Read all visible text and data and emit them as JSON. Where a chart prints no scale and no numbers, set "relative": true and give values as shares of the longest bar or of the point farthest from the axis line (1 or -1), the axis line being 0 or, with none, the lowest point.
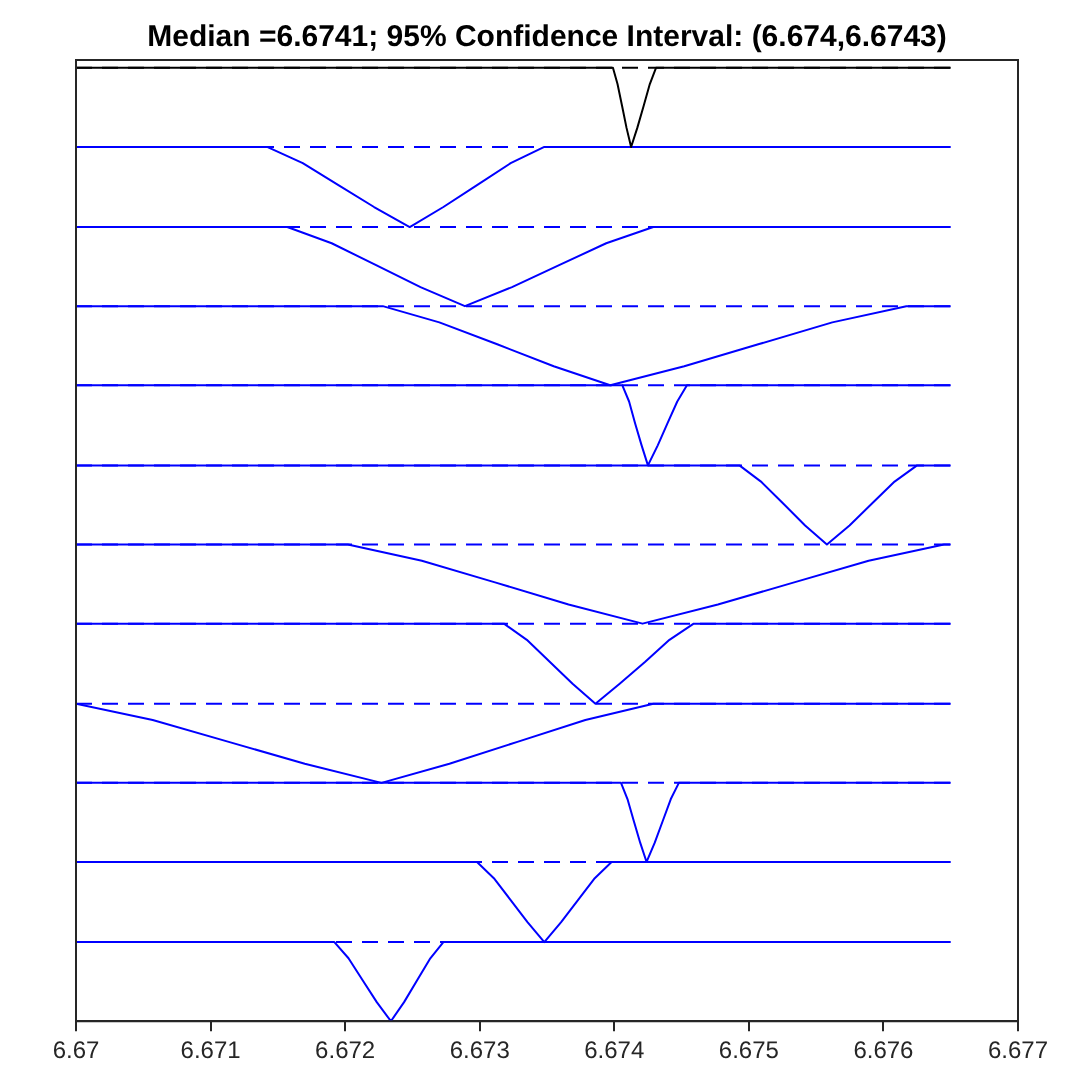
{
  "chart_data": {
    "type": "line",
    "title": "Median =6.6741; 95% Confidence Interval: (6.674,6.6743)",
    "relative": true,
    "xlim": [
      6.67,
      6.677
    ],
    "xticks": [
      6.67,
      6.671,
      6.672,
      6.673,
      6.674,
      6.675,
      6.676,
      6.677
    ],
    "grid": false,
    "legend": false,
    "marker": "none",
    "line_style": "solid",
    "series": [
      {
        "color": "#000000",
        "x": [
          6.67,
          6.67399,
          6.674024,
          6.674058,
          6.674091,
          6.674125,
          6.674171,
          6.674218,
          6.674264,
          6.67431,
          6.6765
        ],
        "values": [
          1,
          1,
          0.983,
          0.96,
          0.937,
          0.917,
          0.937,
          0.96,
          0.983,
          1,
          1
        ]
      },
      {
        "color": "#0000ff",
        "x": [
          6.67,
          6.67142,
          6.671685,
          6.67195,
          6.672215,
          6.67248,
          6.67273,
          6.67298,
          6.67323,
          6.67348,
          6.6765
        ],
        "values": [
          0.917,
          0.917,
          0.9,
          0.877,
          0.854,
          0.833,
          0.854,
          0.877,
          0.9,
          0.917,
          0.917
        ]
      },
      {
        "color": "#0000ff",
        "x": [
          6.67,
          6.67157,
          6.6719,
          6.67223,
          6.67256,
          6.67289,
          6.67324,
          6.67359,
          6.67394,
          6.67429,
          6.6765
        ],
        "values": [
          0.833,
          0.833,
          0.816,
          0.793,
          0.77,
          0.75,
          0.77,
          0.793,
          0.816,
          0.833,
          0.833
        ]
      },
      {
        "color": "#0000ff",
        "x": [
          6.67,
          6.67228,
          6.6727,
          6.67313,
          6.67355,
          6.67397,
          6.67452,
          6.67507,
          6.67562,
          6.67617,
          6.6765
        ],
        "values": [
          0.75,
          0.75,
          0.733,
          0.71,
          0.687,
          0.667,
          0.687,
          0.71,
          0.733,
          0.75,
          0.75
        ]
      },
      {
        "color": "#0000ff",
        "x": [
          6.67,
          6.67406,
          6.67411,
          6.674155,
          6.674203,
          6.67425,
          6.674323,
          6.674395,
          6.674468,
          6.67454,
          6.6765
        ],
        "values": [
          0.667,
          0.667,
          0.65,
          0.627,
          0.604,
          0.583,
          0.604,
          0.627,
          0.65,
          0.667,
          0.667
        ]
      },
      {
        "color": "#0000ff",
        "x": [
          6.67,
          6.67493,
          6.67509,
          6.675255,
          6.675418,
          6.67558,
          6.675748,
          6.675915,
          6.676083,
          6.67625,
          6.6765
        ],
        "values": [
          0.583,
          0.583,
          0.566,
          0.543,
          0.52,
          0.5,
          0.52,
          0.543,
          0.566,
          0.583,
          0.583
        ]
      },
      {
        "color": "#0000ff",
        "x": [
          6.67,
          6.67202,
          6.67257,
          6.67312,
          6.67366,
          6.67421,
          6.67477,
          6.67533,
          6.67589,
          6.67645,
          6.6765
        ],
        "values": [
          0.5,
          0.5,
          0.483,
          0.46,
          0.437,
          0.417,
          0.437,
          0.46,
          0.483,
          0.5,
          0.5
        ]
      },
      {
        "color": "#0000ff",
        "x": [
          6.67,
          6.67318,
          6.67335,
          6.67352,
          6.67369,
          6.67386,
          6.67404,
          6.67423,
          6.67441,
          6.67459,
          6.6765
        ],
        "values": [
          0.417,
          0.417,
          0.4,
          0.377,
          0.354,
          0.333,
          0.354,
          0.377,
          0.4,
          0.417,
          0.417
        ]
      },
      {
        "color": "#0000ff",
        "x": [
          6.67,
          6.67057,
          6.671135,
          6.6717,
          6.67227,
          6.672775,
          6.67328,
          6.673785,
          6.67429,
          6.6765
        ],
        "values": [
          0.333,
          0.316,
          0.293,
          0.27,
          0.25,
          0.27,
          0.293,
          0.316,
          0.333,
          0.333
        ]
      },
      {
        "color": "#0000ff",
        "x": [
          6.67,
          6.67405,
          6.674098,
          6.674145,
          6.674193,
          6.67424,
          6.6743,
          6.67436,
          6.67442,
          6.67448,
          6.6765
        ],
        "values": [
          0.25,
          0.25,
          0.233,
          0.21,
          0.187,
          0.167,
          0.187,
          0.21,
          0.233,
          0.25,
          0.25
        ]
      },
      {
        "color": "#0000ff",
        "x": [
          6.67,
          6.67298,
          6.673105,
          6.67323,
          6.673355,
          6.67348,
          6.673605,
          6.67373,
          6.673855,
          6.67398,
          6.6765
        ],
        "values": [
          0.167,
          0.167,
          0.15,
          0.127,
          0.104,
          0.083,
          0.104,
          0.127,
          0.15,
          0.167,
          0.167
        ]
      },
      {
        "color": "#0000ff",
        "x": [
          6.67,
          6.67192,
          6.672025,
          6.67213,
          6.672235,
          6.67234,
          6.672438,
          6.672535,
          6.672633,
          6.67273,
          6.6765
        ],
        "values": [
          0.083,
          0.083,
          0.066,
          0.043,
          0.02,
          0,
          0.02,
          0.043,
          0.066,
          0.083,
          0.083
        ]
      }
    ],
    "ref_lines": [
      {
        "axis": "y",
        "value": 1,
        "color": "#000000",
        "line_style": "dashed"
      },
      {
        "axis": "y",
        "value": 0.917,
        "color": "#0000ff",
        "line_style": "dashed"
      },
      {
        "axis": "y",
        "value": 0.833,
        "color": "#0000ff",
        "line_style": "dashed"
      },
      {
        "axis": "y",
        "value": 0.75,
        "color": "#0000ff",
        "line_style": "dashed"
      },
      {
        "axis": "y",
        "value": 0.667,
        "color": "#0000ff",
        "line_style": "dashed"
      },
      {
        "axis": "y",
        "value": 0.583,
        "color": "#0000ff",
        "line_style": "dashed"
      },
      {
        "axis": "y",
        "value": 0.5,
        "color": "#0000ff",
        "line_style": "dashed"
      },
      {
        "axis": "y",
        "value": 0.417,
        "color": "#0000ff",
        "line_style": "dashed"
      },
      {
        "axis": "y",
        "value": 0.333,
        "color": "#0000ff",
        "line_style": "dashed"
      },
      {
        "axis": "y",
        "value": 0.25,
        "color": "#0000ff",
        "line_style": "dashed"
      },
      {
        "axis": "y",
        "value": 0.167,
        "color": "#0000ff",
        "line_style": "dashed"
      },
      {
        "axis": "y",
        "value": 0.083,
        "color": "#0000ff",
        "line_style": "dashed"
      }
    ]
  }
}
